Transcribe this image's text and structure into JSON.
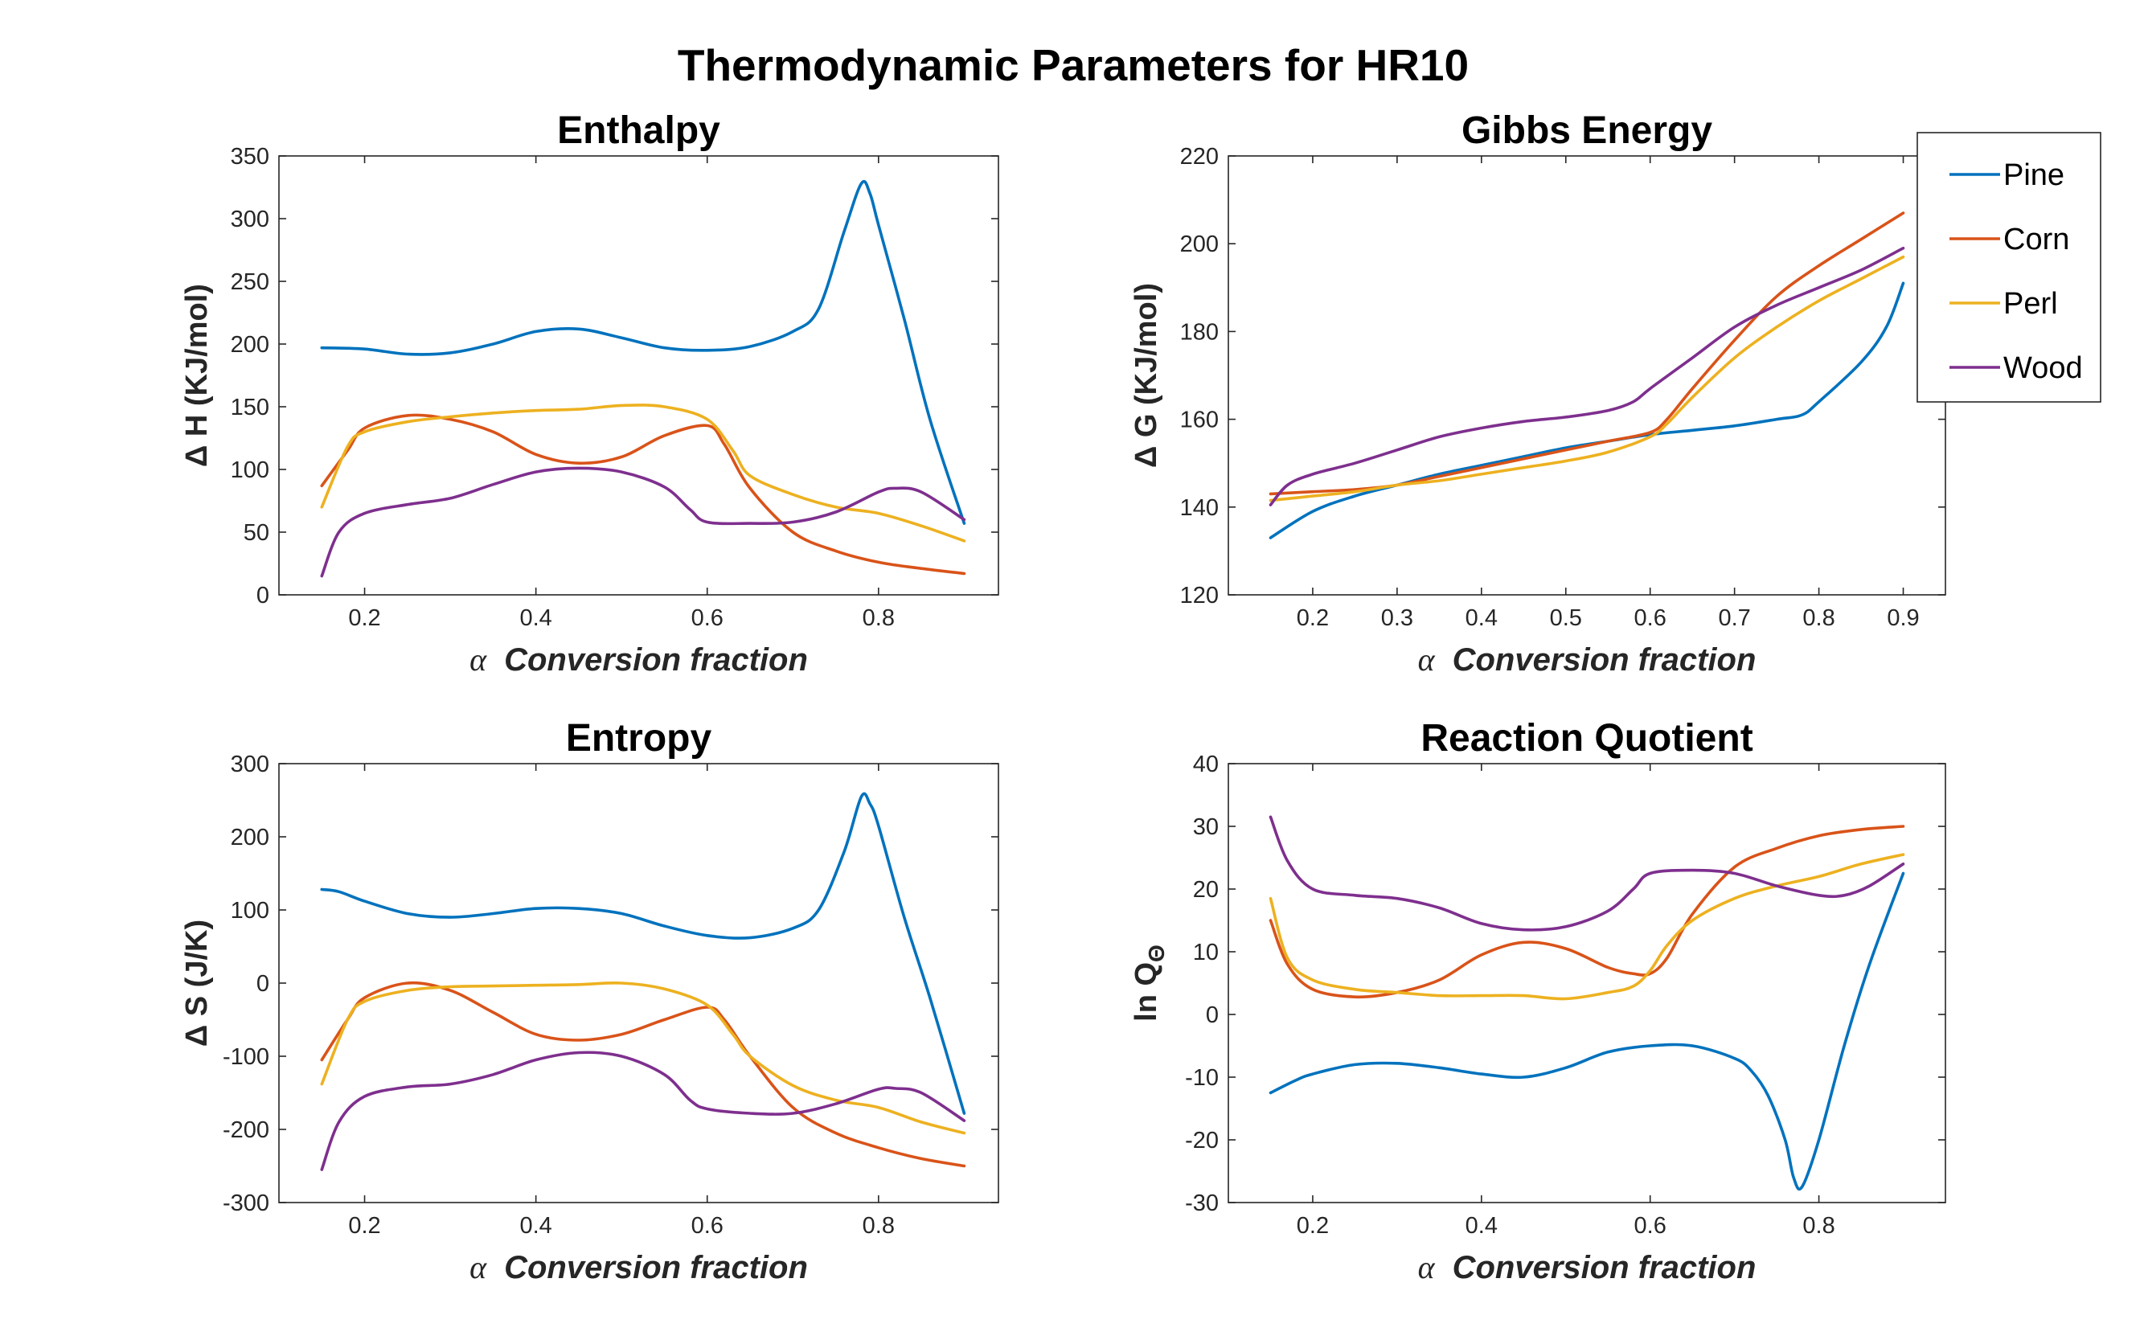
{
  "figure": {
    "title": "Thermodynamic Parameters for HR10",
    "xlabel_symbol": "α",
    "xlabel_text": "Conversion fraction",
    "legend": [
      {
        "name": "Pine",
        "color": "#0072BD"
      },
      {
        "name": "Corn",
        "color": "#D95319"
      },
      {
        "name": "Perl",
        "color": "#EDB120"
      },
      {
        "name": "Wood",
        "color": "#7E2F8E"
      }
    ]
  },
  "chart_data": [
    {
      "type": "line",
      "title": "Enthalpy",
      "ylabel": "Δ H (KJ/mol)",
      "xlim": [
        0.1,
        0.94
      ],
      "ylim": [
        0,
        350
      ],
      "xticks": [
        0.2,
        0.4,
        0.6,
        0.8
      ],
      "xtick_labels": [
        "0.2",
        "0.4",
        "0.6",
        "0.8"
      ],
      "yticks": [
        0,
        50,
        100,
        150,
        200,
        250,
        300,
        350
      ],
      "ytick_labels": [
        "0",
        "50",
        "100",
        "150",
        "200",
        "250",
        "300",
        "350"
      ],
      "grid": false,
      "legend_position": "none",
      "series": [
        {
          "name": "Pine",
          "x": [
            0.15,
            0.2,
            0.25,
            0.3,
            0.35,
            0.4,
            0.45,
            0.5,
            0.55,
            0.6,
            0.65,
            0.7,
            0.73,
            0.76,
            0.78,
            0.79,
            0.8,
            0.83,
            0.86,
            0.9
          ],
          "y": [
            197,
            196,
            192,
            193,
            200,
            210,
            212,
            205,
            197,
            195,
            198,
            210,
            228,
            290,
            328,
            320,
            295,
            220,
            140,
            57
          ]
        },
        {
          "name": "Corn",
          "x": [
            0.15,
            0.18,
            0.2,
            0.25,
            0.3,
            0.35,
            0.4,
            0.45,
            0.5,
            0.55,
            0.6,
            0.62,
            0.65,
            0.7,
            0.75,
            0.8,
            0.85,
            0.9
          ],
          "y": [
            87,
            115,
            133,
            143,
            140,
            130,
            112,
            105,
            110,
            127,
            135,
            120,
            85,
            50,
            35,
            26,
            21,
            17
          ]
        },
        {
          "name": "Perl",
          "x": [
            0.15,
            0.18,
            0.2,
            0.25,
            0.3,
            0.35,
            0.4,
            0.45,
            0.5,
            0.55,
            0.6,
            0.63,
            0.65,
            0.7,
            0.75,
            0.8,
            0.85,
            0.9
          ],
          "y": [
            70,
            118,
            130,
            138,
            142,
            145,
            147,
            148,
            151,
            150,
            140,
            115,
            95,
            80,
            70,
            65,
            55,
            43
          ]
        },
        {
          "name": "Wood",
          "x": [
            0.15,
            0.17,
            0.2,
            0.25,
            0.3,
            0.35,
            0.4,
            0.45,
            0.5,
            0.55,
            0.58,
            0.6,
            0.65,
            0.7,
            0.75,
            0.8,
            0.82,
            0.85,
            0.9
          ],
          "y": [
            15,
            50,
            65,
            72,
            77,
            88,
            98,
            101,
            98,
            86,
            68,
            58,
            57,
            58,
            66,
            82,
            85,
            82,
            60
          ]
        }
      ]
    },
    {
      "type": "line",
      "title": "Gibbs Energy",
      "ylabel": "Δ G (KJ/mol)",
      "xlim": [
        0.1,
        0.95
      ],
      "ylim": [
        120,
        220
      ],
      "xticks": [
        0.2,
        0.3,
        0.4,
        0.5,
        0.6,
        0.7,
        0.8,
        0.9
      ],
      "xtick_labels": [
        "0.2",
        "0.3",
        "0.4",
        "0.5",
        "0.6",
        "0.7",
        "0.8",
        "0.9"
      ],
      "yticks": [
        120,
        140,
        160,
        180,
        200,
        220
      ],
      "ytick_labels": [
        "120",
        "140",
        "160",
        "180",
        "200",
        "220"
      ],
      "grid": false,
      "legend_position": "outside-top-right",
      "series": [
        {
          "name": "Pine",
          "x": [
            0.15,
            0.2,
            0.25,
            0.3,
            0.35,
            0.4,
            0.45,
            0.5,
            0.55,
            0.6,
            0.65,
            0.7,
            0.75,
            0.78,
            0.8,
            0.85,
            0.88,
            0.9
          ],
          "y": [
            133,
            139,
            142.5,
            145,
            147.5,
            149.5,
            151.5,
            153.5,
            155,
            156.5,
            157.5,
            158.5,
            160,
            161,
            164,
            173,
            181,
            191
          ]
        },
        {
          "name": "Corn",
          "x": [
            0.15,
            0.2,
            0.25,
            0.3,
            0.35,
            0.4,
            0.45,
            0.5,
            0.55,
            0.6,
            0.62,
            0.65,
            0.7,
            0.75,
            0.8,
            0.85,
            0.9
          ],
          "y": [
            143,
            143.5,
            144,
            145,
            147,
            149,
            151,
            153,
            155,
            157,
            160,
            167,
            178,
            188,
            195,
            201,
            207
          ]
        },
        {
          "name": "Perl",
          "x": [
            0.15,
            0.2,
            0.25,
            0.3,
            0.35,
            0.4,
            0.45,
            0.5,
            0.55,
            0.6,
            0.62,
            0.65,
            0.7,
            0.75,
            0.8,
            0.85,
            0.9
          ],
          "y": [
            141.5,
            142.5,
            143.5,
            145,
            146,
            147.5,
            149,
            150.5,
            152.5,
            156,
            159,
            165,
            174,
            181,
            187,
            192,
            197
          ]
        },
        {
          "name": "Wood",
          "x": [
            0.15,
            0.17,
            0.2,
            0.25,
            0.3,
            0.35,
            0.4,
            0.45,
            0.5,
            0.55,
            0.58,
            0.6,
            0.65,
            0.7,
            0.75,
            0.8,
            0.85,
            0.9
          ],
          "y": [
            140.5,
            145,
            147.5,
            150,
            153,
            156,
            158,
            159.5,
            160.5,
            162,
            164,
            167,
            174,
            181,
            186,
            190,
            194,
            199
          ]
        }
      ]
    },
    {
      "type": "line",
      "title": "Entropy",
      "ylabel": "Δ S (J/K)",
      "xlim": [
        0.1,
        0.94
      ],
      "ylim": [
        -300,
        300
      ],
      "xticks": [
        0.2,
        0.4,
        0.6,
        0.8
      ],
      "xtick_labels": [
        "0.2",
        "0.4",
        "0.6",
        "0.8"
      ],
      "yticks": [
        -300,
        -200,
        -100,
        0,
        100,
        200,
        300
      ],
      "ytick_labels": [
        "-300",
        "-200",
        "-100",
        "0",
        "100",
        "200",
        "300"
      ],
      "grid": false,
      "legend_position": "none",
      "series": [
        {
          "name": "Pine",
          "x": [
            0.15,
            0.17,
            0.2,
            0.25,
            0.3,
            0.35,
            0.4,
            0.45,
            0.5,
            0.55,
            0.6,
            0.65,
            0.7,
            0.73,
            0.76,
            0.78,
            0.79,
            0.8,
            0.83,
            0.86,
            0.9
          ],
          "y": [
            128,
            125,
            112,
            95,
            90,
            95,
            102,
            102,
            95,
            78,
            65,
            62,
            75,
            100,
            180,
            255,
            245,
            215,
            90,
            -20,
            -178
          ]
        },
        {
          "name": "Corn",
          "x": [
            0.15,
            0.18,
            0.2,
            0.25,
            0.3,
            0.35,
            0.4,
            0.45,
            0.5,
            0.55,
            0.6,
            0.62,
            0.65,
            0.7,
            0.75,
            0.8,
            0.85,
            0.9
          ],
          "y": [
            -105,
            -50,
            -20,
            0,
            -10,
            -40,
            -70,
            -78,
            -70,
            -50,
            -33,
            -50,
            -100,
            -170,
            -205,
            -225,
            -240,
            -250
          ]
        },
        {
          "name": "Perl",
          "x": [
            0.15,
            0.18,
            0.2,
            0.25,
            0.3,
            0.35,
            0.4,
            0.45,
            0.5,
            0.55,
            0.6,
            0.63,
            0.65,
            0.7,
            0.75,
            0.8,
            0.85,
            0.9
          ],
          "y": [
            -138,
            -50,
            -25,
            -10,
            -5,
            -4,
            -3,
            -2,
            0,
            -8,
            -30,
            -70,
            -100,
            -140,
            -160,
            -170,
            -190,
            -205
          ]
        },
        {
          "name": "Wood",
          "x": [
            0.15,
            0.17,
            0.2,
            0.25,
            0.3,
            0.35,
            0.4,
            0.45,
            0.5,
            0.55,
            0.58,
            0.6,
            0.65,
            0.7,
            0.75,
            0.8,
            0.82,
            0.85,
            0.9
          ],
          "y": [
            -255,
            -190,
            -155,
            -142,
            -138,
            -125,
            -105,
            -95,
            -100,
            -125,
            -160,
            -172,
            -178,
            -178,
            -165,
            -145,
            -144,
            -150,
            -188
          ]
        }
      ]
    },
    {
      "type": "line",
      "title": "Reaction Quotient",
      "ylabel": "ln Q",
      "ylabel_subscript": "Θ",
      "xlim": [
        0.1,
        0.95
      ],
      "ylim": [
        -30,
        40
      ],
      "xticks": [
        0.2,
        0.4,
        0.6,
        0.8
      ],
      "xtick_labels": [
        "0.2",
        "0.4",
        "0.6",
        "0.8"
      ],
      "yticks": [
        -30,
        -20,
        -10,
        0,
        10,
        20,
        30,
        40
      ],
      "ytick_labels": [
        "-30",
        "-20",
        "-10",
        "0",
        "10",
        "20",
        "30",
        "40"
      ],
      "grid": false,
      "legend_position": "none",
      "series": [
        {
          "name": "Pine",
          "x": [
            0.15,
            0.18,
            0.2,
            0.25,
            0.3,
            0.35,
            0.4,
            0.45,
            0.5,
            0.55,
            0.6,
            0.65,
            0.7,
            0.72,
            0.74,
            0.76,
            0.77,
            0.78,
            0.8,
            0.83,
            0.86,
            0.9
          ],
          "y": [
            -12.5,
            -10.5,
            -9.5,
            -8,
            -7.8,
            -8.5,
            -9.5,
            -10,
            -8.5,
            -6,
            -5,
            -5,
            -7,
            -9,
            -13,
            -20,
            -26,
            -27.5,
            -20,
            -5,
            8,
            22.5
          ]
        },
        {
          "name": "Corn",
          "x": [
            0.15,
            0.17,
            0.2,
            0.25,
            0.3,
            0.35,
            0.4,
            0.45,
            0.5,
            0.55,
            0.58,
            0.6,
            0.62,
            0.65,
            0.7,
            0.75,
            0.8,
            0.85,
            0.9
          ],
          "y": [
            15,
            8,
            4,
            2.8,
            3.5,
            5.5,
            9.5,
            11.5,
            10.5,
            7.5,
            6.5,
            6.5,
            9,
            16,
            23.5,
            26.5,
            28.5,
            29.5,
            30
          ]
        },
        {
          "name": "Perl",
          "x": [
            0.15,
            0.17,
            0.2,
            0.25,
            0.3,
            0.35,
            0.4,
            0.45,
            0.5,
            0.55,
            0.58,
            0.6,
            0.62,
            0.65,
            0.7,
            0.75,
            0.8,
            0.85,
            0.9
          ],
          "y": [
            18.5,
            9,
            5.5,
            4,
            3.5,
            3,
            3,
            3,
            2.5,
            3.5,
            4.5,
            7,
            11,
            15,
            18.5,
            20.5,
            22,
            24,
            25.5
          ]
        },
        {
          "name": "Wood",
          "x": [
            0.15,
            0.17,
            0.2,
            0.25,
            0.3,
            0.35,
            0.4,
            0.45,
            0.5,
            0.55,
            0.58,
            0.6,
            0.65,
            0.7,
            0.75,
            0.8,
            0.83,
            0.86,
            0.9
          ],
          "y": [
            31.5,
            24.5,
            20,
            19,
            18.5,
            17,
            14.5,
            13.5,
            14,
            16.5,
            20,
            22.5,
            23,
            22.5,
            20.5,
            19,
            19,
            20.5,
            24
          ]
        }
      ]
    }
  ]
}
